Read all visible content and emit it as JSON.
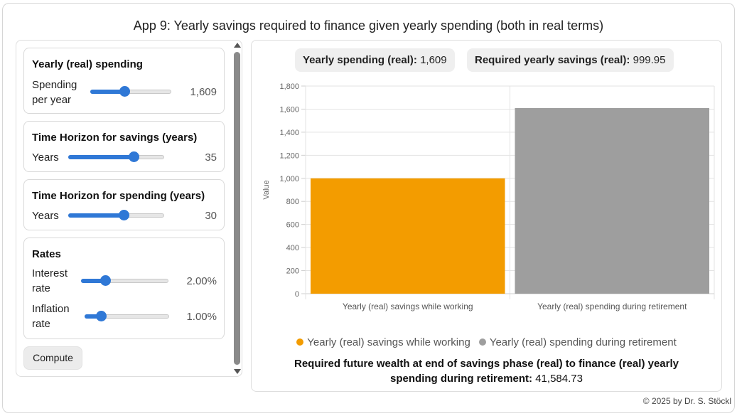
{
  "app": {
    "title": "App 9: Yearly savings required to finance given yearly spending (both in real terms)",
    "footer": "© 2025 by Dr. S. Stöckl"
  },
  "sidebar": {
    "spending_card": {
      "title": "Yearly (real) spending",
      "label_line1": "Spending",
      "label_line2": "per year",
      "value": "1,609",
      "slider_fraction": 0.42
    },
    "savings_horizon_card": {
      "title": "Time Horizon for savings (years)",
      "label": "Years",
      "value": "35",
      "slider_fraction": 0.68
    },
    "spending_horizon_card": {
      "title": "Time Horizon for spending (years)",
      "label": "Years",
      "value": "30",
      "slider_fraction": 0.58
    },
    "rates_card": {
      "title": "Rates",
      "interest_label_line1": "Interest",
      "interest_label_line2": "rate",
      "interest_value": "2.00%",
      "interest_slider_fraction": 0.28,
      "inflation_label_line1": "Inflation",
      "inflation_label_line2": "rate",
      "inflation_value": "1.00%",
      "inflation_slider_fraction": 0.19
    },
    "compute_label": "Compute"
  },
  "main": {
    "pill_spending_label": "Yearly spending (real):",
    "pill_spending_value": "1,609",
    "pill_savings_label": "Required yearly savings (real):",
    "pill_savings_value": "999.95",
    "summary_bold": "Required future wealth at end of savings phase (real) to finance (real) yearly spending during retirement:",
    "summary_value": "41,584.73"
  },
  "chart_data": {
    "type": "bar",
    "categories": [
      "Yearly (real) savings while working",
      "Yearly (real) spending during retirement"
    ],
    "values": [
      999.95,
      1609
    ],
    "colors": [
      "#f39c00",
      "#9e9e9e"
    ],
    "ylabel": "Value",
    "ylim": [
      0,
      1800
    ],
    "yticks": [
      "0",
      "200",
      "400",
      "600",
      "800",
      "1,000",
      "1,200",
      "1,400",
      "1,600",
      "1,800"
    ],
    "grid": true,
    "legend": [
      {
        "name": "Yearly (real) savings while working",
        "color": "#f39c00"
      },
      {
        "name": "Yearly (real) spending during retirement",
        "color": "#9e9e9e"
      }
    ],
    "legend_position": "bottom"
  }
}
